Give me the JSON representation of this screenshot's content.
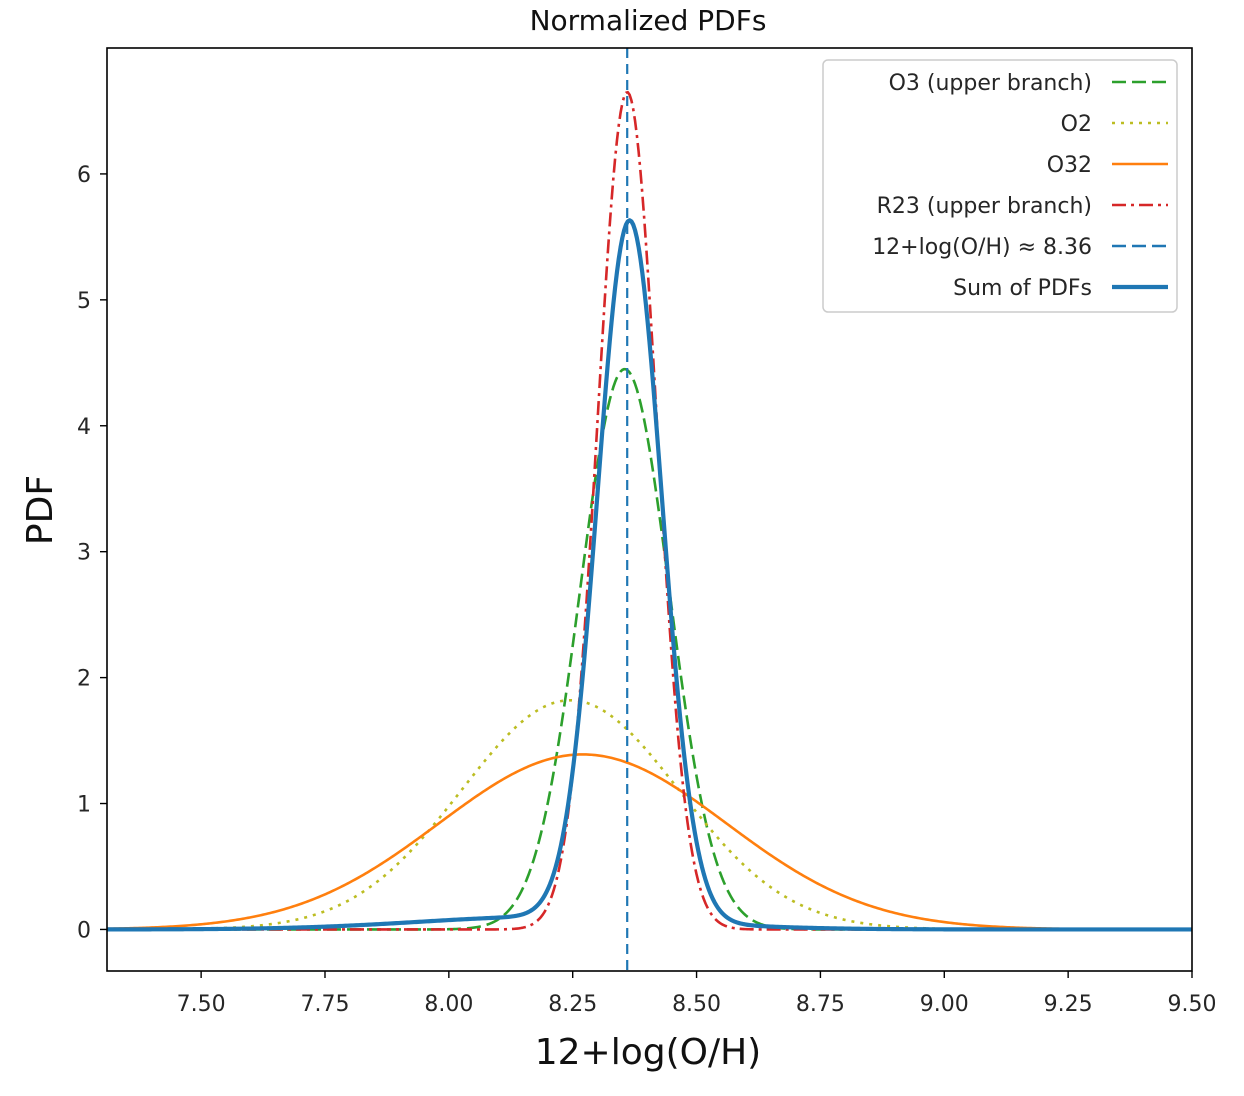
{
  "chart_data": {
    "type": "line",
    "title": "Normalized PDFs",
    "xlabel": "12+log(O/H)",
    "ylabel": "PDF",
    "xlim": [
      7.31,
      9.5
    ],
    "ylim": [
      -0.33,
      7.0
    ],
    "xticks": [
      7.5,
      7.75,
      8.0,
      8.25,
      8.5,
      8.75,
      9.0,
      9.25,
      9.5
    ],
    "xtick_labels": [
      "7.50",
      "7.75",
      "8.00",
      "8.25",
      "8.50",
      "8.75",
      "9.00",
      "9.25",
      "9.50"
    ],
    "yticks": [
      0,
      1,
      2,
      3,
      4,
      5,
      6
    ],
    "ytick_labels": [
      "0",
      "1",
      "2",
      "3",
      "4",
      "5",
      "6"
    ],
    "legend_position": "top-right",
    "vline": {
      "x": 8.36,
      "label": "12+log(O/H) ≈ 8.36",
      "color": "#1f77b4"
    },
    "series": [
      {
        "name": "O3 (upper branch)",
        "color": "#2ca02c",
        "style": "dashed",
        "model": {
          "kind": "gaussian",
          "mu": 8.355,
          "sigma": 0.09,
          "peak": 4.45
        }
      },
      {
        "name": "O2",
        "color": "#bcbd22",
        "style": "dotted",
        "model": {
          "kind": "gaussian",
          "mu": 8.245,
          "sigma": 0.22,
          "peak": 1.82
        }
      },
      {
        "name": "O32",
        "color": "#ff7f0e",
        "style": "solid",
        "model": {
          "kind": "gaussian",
          "mu": 8.27,
          "sigma": 0.29,
          "peak": 1.39
        }
      },
      {
        "name": "R23 (upper branch)",
        "color": "#d62728",
        "style": "dashdot",
        "model": {
          "kind": "gaussian",
          "mu": 8.36,
          "sigma": 0.06,
          "peak": 6.65
        }
      },
      {
        "name": "Sum of PDFs",
        "color": "#1f77b4",
        "style": "solid-thick",
        "model": {
          "kind": "sum",
          "components": [
            {
              "mu": 8.365,
              "sigma": 0.065,
              "peak": 5.55
            },
            {
              "mu": 8.2,
              "sigma": 0.26,
              "peak": 0.1
            }
          ]
        }
      }
    ],
    "legend_order": [
      "O3 (upper branch)",
      "O2",
      "O32",
      "R23 (upper branch)",
      "12+log(O/H) ≈ 8.36",
      "Sum of PDFs"
    ]
  }
}
